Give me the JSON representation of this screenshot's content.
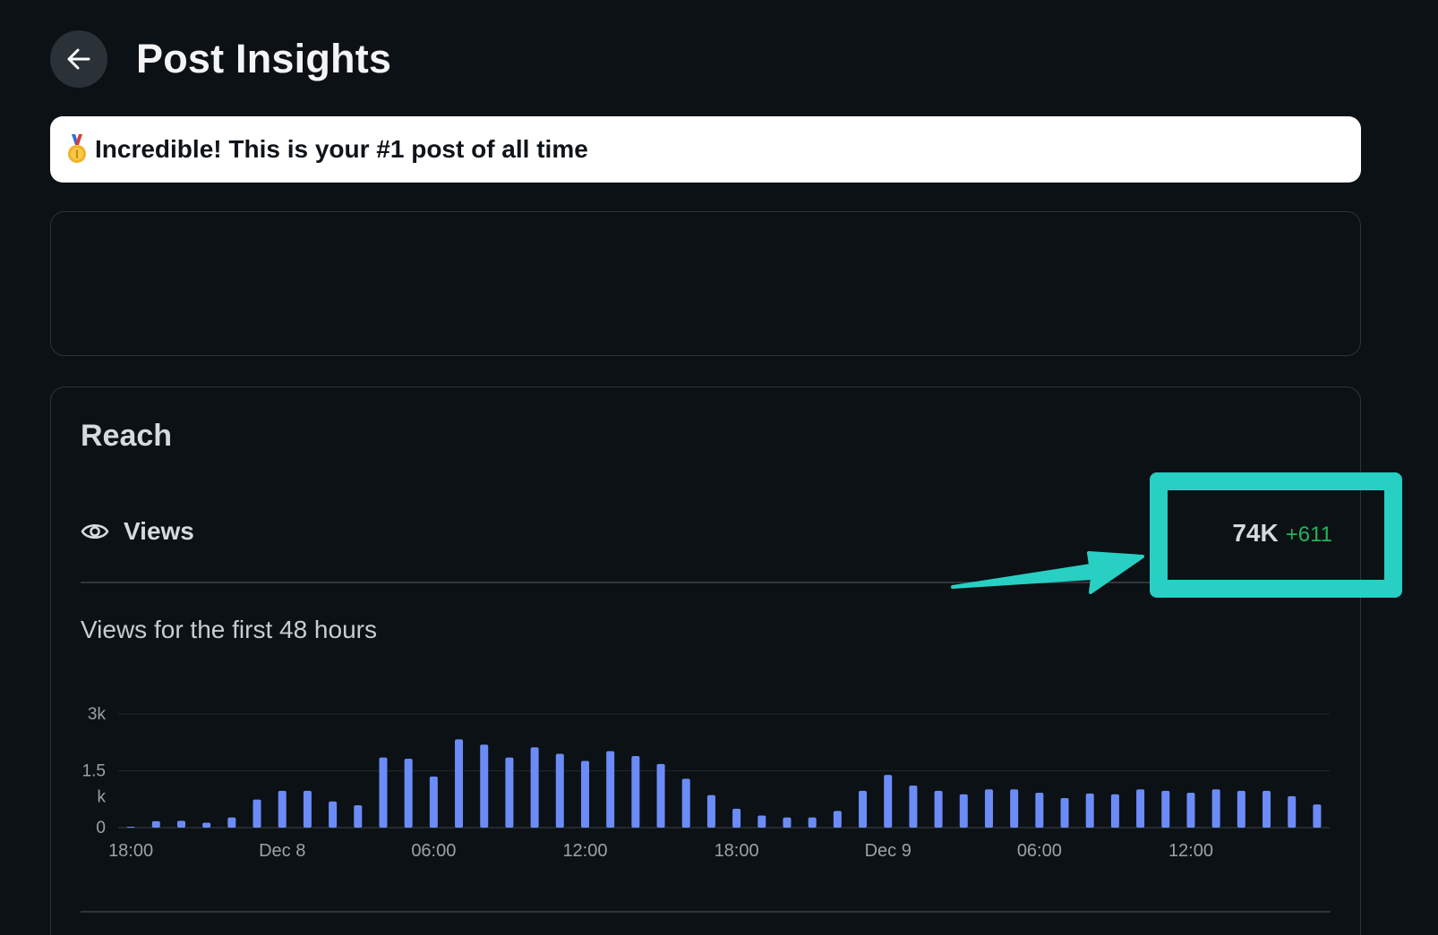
{
  "header": {
    "title": "Post Insights",
    "back_icon": "arrow-left-icon"
  },
  "banner": {
    "icon": "medal-icon",
    "text": "Incredible! This is your #1 post of all time"
  },
  "reach": {
    "title": "Reach",
    "views_label": "Views",
    "views_icon": "eye-icon",
    "views_total": "74K",
    "views_delta": "+611",
    "chart_subtitle": "Views for the first 48 hours"
  },
  "colors": {
    "background": "#0c1115",
    "bar": "#6b8cf7",
    "delta": "#24b35b",
    "highlight": "#27d0c2"
  },
  "chart_data": {
    "type": "bar",
    "ylim": [
      0,
      3000
    ],
    "ytick_labels": [
      "3k",
      "1.5 k",
      "0"
    ],
    "yticks": [
      3000,
      1500,
      0
    ],
    "xtick_labels": [
      "18:00",
      "Dec 8",
      "06:00",
      "12:00",
      "18:00",
      "Dec 9",
      "06:00",
      "12:00"
    ],
    "xtick_indices": [
      0.5,
      6.5,
      12.5,
      18.5,
      24.5,
      30.5,
      36.5,
      42.5
    ],
    "grid": true,
    "values": [
      20,
      170,
      180,
      130,
      270,
      740,
      970,
      970,
      690,
      590,
      1850,
      1820,
      1350,
      2330,
      2190,
      1850,
      2120,
      1950,
      1760,
      2020,
      1890,
      1680,
      1290,
      860,
      500,
      320,
      270,
      270,
      440,
      970,
      1390,
      1110,
      970,
      880,
      1010,
      1010,
      920,
      780,
      900,
      880,
      1010,
      970,
      920,
      1010,
      970,
      970,
      830,
      610
    ]
  }
}
